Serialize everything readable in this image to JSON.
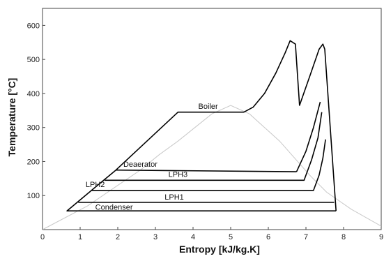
{
  "chart_data": {
    "type": "line",
    "title": "",
    "xlabel": "Entropy [kJ/kg.K]",
    "ylabel": "Temperature [°C]",
    "xlim": [
      0,
      9
    ],
    "ylim": [
      0,
      650
    ],
    "xticks": [
      0,
      1,
      2,
      3,
      4,
      5,
      6,
      7,
      8,
      9
    ],
    "xtick_labels": [
      "0",
      "1",
      "2",
      "3",
      "4",
      "5",
      "6",
      "7",
      "8",
      "9"
    ],
    "yticks": [
      100,
      200,
      300,
      400,
      500,
      600
    ],
    "ytick_labels": [
      "100",
      "200",
      "300",
      "400",
      "500",
      "600"
    ],
    "grid": false,
    "series": [
      {
        "values": [
          [
            7.8,
            55
          ],
          [
            0.65,
            55
          ],
          [
            0.65,
            55
          ],
          [
            1.3,
            115
          ],
          [
            1.95,
            175
          ],
          [
            3.6,
            345
          ],
          [
            5.35,
            345
          ],
          [
            5.6,
            360
          ],
          [
            5.9,
            400
          ],
          [
            6.2,
            460
          ],
          [
            6.45,
            520
          ],
          [
            6.58,
            555
          ],
          [
            6.72,
            545
          ],
          [
            6.83,
            365
          ],
          [
            7.1,
            450
          ],
          [
            7.35,
            530
          ],
          [
            7.45,
            545
          ],
          [
            7.5,
            530
          ],
          [
            7.8,
            55
          ]
        ],
        "color": "#000000"
      },
      {
        "values": [
          [
            6.75,
            170
          ],
          [
            7.0,
            230
          ],
          [
            7.2,
            300
          ],
          [
            7.38,
            375
          ]
        ],
        "color": "#000000"
      },
      {
        "values": [
          [
            1.95,
            175
          ],
          [
            6.75,
            170
          ]
        ],
        "color": "#000000"
      },
      {
        "values": [
          [
            1.65,
            145
          ],
          [
            6.95,
            145
          ],
          [
            7.15,
            205
          ],
          [
            7.32,
            270
          ],
          [
            7.42,
            345
          ]
        ],
        "color": "#000000"
      },
      {
        "values": [
          [
            1.3,
            115
          ],
          [
            7.2,
            115
          ],
          [
            7.35,
            160
          ],
          [
            7.45,
            210
          ],
          [
            7.52,
            265
          ]
        ],
        "color": "#000000"
      },
      {
        "values": [
          [
            0.95,
            80
          ],
          [
            7.75,
            80
          ]
        ],
        "color": "#000000"
      }
    ],
    "saturation_dome": [
      [
        0.0,
        0
      ],
      [
        1.2,
        70
      ],
      [
        2.0,
        130
      ],
      [
        2.6,
        175
      ],
      [
        3.1,
        220
      ],
      [
        3.6,
        260
      ],
      [
        4.05,
        300
      ],
      [
        4.5,
        340
      ],
      [
        5.0,
        365
      ],
      [
        5.5,
        340
      ],
      [
        5.9,
        300
      ],
      [
        6.3,
        260
      ],
      [
        6.7,
        210
      ],
      [
        7.1,
        160
      ],
      [
        7.55,
        110
      ],
      [
        8.2,
        60
      ],
      [
        9.0,
        10
      ]
    ],
    "annotations": [
      {
        "text": "Boiler",
        "x": 4.4,
        "y": 355
      },
      {
        "text": "Deaerator",
        "x": 2.6,
        "y": 185
      },
      {
        "text": "LPH3",
        "x": 3.6,
        "y": 155
      },
      {
        "text": "LPH2",
        "x": 1.4,
        "y": 125
      },
      {
        "text": "LPH1",
        "x": 3.5,
        "y": 88
      },
      {
        "text": "Condenser",
        "x": 1.9,
        "y": 58
      }
    ]
  }
}
